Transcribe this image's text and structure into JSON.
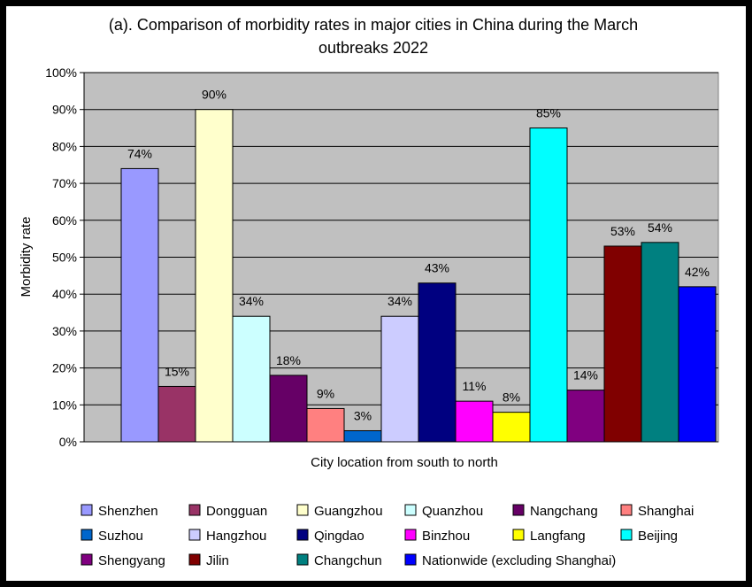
{
  "chart_data": {
    "type": "bar",
    "title_line1": "(a). Comparison of morbidity rates in major cities in China during the March",
    "title_line2": "outbreaks 2022",
    "xlabel": "City location from south to north",
    "ylabel": "Morbidity rate",
    "ylim": [
      0,
      100
    ],
    "y_ticks": [
      "0%",
      "10%",
      "20%",
      "30%",
      "40%",
      "50%",
      "60%",
      "70%",
      "80%",
      "90%",
      "100%"
    ],
    "grid": true,
    "legend_position": "bottom",
    "series": [
      {
        "name": "Shenzhen",
        "value": 74,
        "label": "74%",
        "color": "#9999ff"
      },
      {
        "name": "Dongguan",
        "value": 15,
        "label": "15%",
        "color": "#993366"
      },
      {
        "name": "Guangzhou",
        "value": 90,
        "label": "90%",
        "color": "#ffffcc"
      },
      {
        "name": "Quanzhou",
        "value": 34,
        "label": "34%",
        "color": "#ccffff"
      },
      {
        "name": "Nangchang",
        "value": 18,
        "label": "18%",
        "color": "#660066"
      },
      {
        "name": "Shanghai",
        "value": 9,
        "label": "9%",
        "color": "#ff8080"
      },
      {
        "name": "Suzhou",
        "value": 3,
        "label": "3%",
        "color": "#0066cc"
      },
      {
        "name": "Hangzhou",
        "value": 34,
        "label": "34%",
        "color": "#ccccff"
      },
      {
        "name": "Qingdao",
        "value": 43,
        "label": "43%",
        "color": "#000080"
      },
      {
        "name": "Binzhou",
        "value": 11,
        "label": "11%",
        "color": "#ff00ff"
      },
      {
        "name": "Langfang",
        "value": 8,
        "label": "8%",
        "color": "#ffff00"
      },
      {
        "name": "Beijing",
        "value": 85,
        "label": "85%",
        "color": "#00ffff"
      },
      {
        "name": "Shengyang",
        "value": 14,
        "label": "14%",
        "color": "#800080"
      },
      {
        "name": "Jilin",
        "value": 53,
        "label": "53%",
        "color": "#800000"
      },
      {
        "name": "Changchun",
        "value": 54,
        "label": "54%",
        "color": "#008080"
      },
      {
        "name": "Nationwide (excluding Shanghai)",
        "value": 42,
        "label": "42%",
        "color": "#0000ff"
      }
    ],
    "plot_background": "#c0c0c0"
  }
}
